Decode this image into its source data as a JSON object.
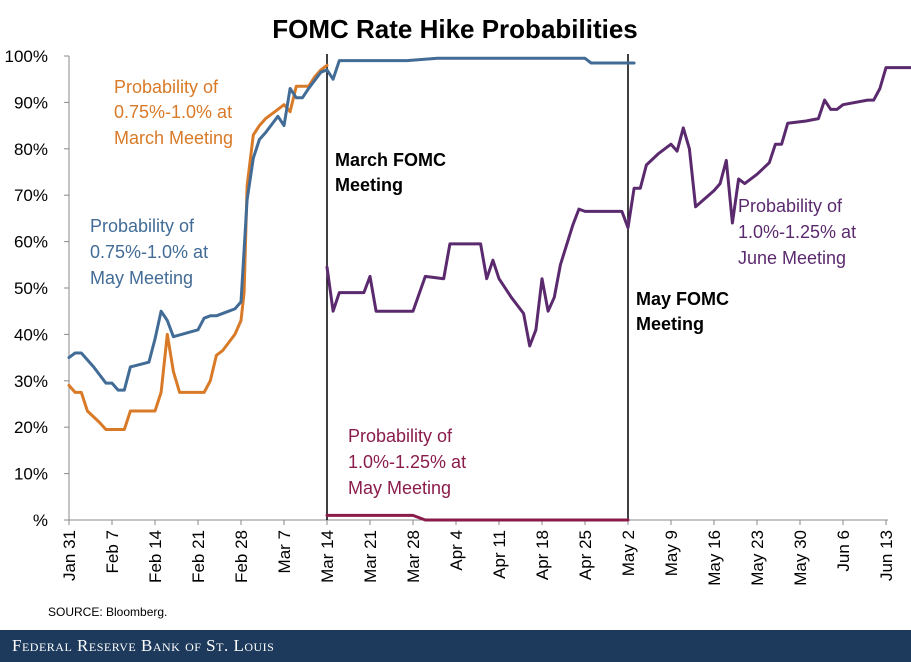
{
  "chart_data": {
    "type": "line",
    "title": "FOMC Rate Hike Probabilities",
    "xlabel": "",
    "ylabel": "",
    "ylim": [
      0,
      100
    ],
    "y_ticks": [
      "%",
      "10%",
      "20%",
      "30%",
      "40%",
      "50%",
      "60%",
      "70%",
      "80%",
      "90%",
      "100%"
    ],
    "x_ticks": [
      "Jan 31",
      "Feb 7",
      "Feb 14",
      "Feb 21",
      "Feb 28",
      "Mar 7",
      "Mar 14",
      "Mar 21",
      "Mar 28",
      "Apr 4",
      "Apr 11",
      "Apr 18",
      "Apr 25",
      "May 2",
      "May 9",
      "May 16",
      "May 23",
      "May 30",
      "Jun 6",
      "Jun 13"
    ],
    "x_unit": "days since Jan 31",
    "vertical_markers": [
      {
        "day": 42,
        "label": "March FOMC Meeting"
      },
      {
        "day": 91,
        "label": "May FOMC Meeting"
      }
    ],
    "series": [
      {
        "name": "Probability of 0.75%-1.0% at March Meeting",
        "color": "#d97a28",
        "points": [
          [
            0,
            29
          ],
          [
            1,
            27.5
          ],
          [
            2,
            27.5
          ],
          [
            3,
            23.5
          ],
          [
            5,
            21
          ],
          [
            6,
            19.5
          ],
          [
            7,
            19.5
          ],
          [
            8,
            19.5
          ],
          [
            9,
            19.5
          ],
          [
            10,
            23.5
          ],
          [
            11,
            23.5
          ],
          [
            14,
            23.5
          ],
          [
            15,
            27.5
          ],
          [
            16,
            40
          ],
          [
            17,
            32
          ],
          [
            18,
            27.5
          ],
          [
            21,
            27.5
          ],
          [
            22,
            27.5
          ],
          [
            23,
            30
          ],
          [
            24,
            35.5
          ],
          [
            25,
            36.5
          ],
          [
            27,
            40
          ],
          [
            28,
            43
          ],
          [
            28.5,
            49
          ],
          [
            29,
            72
          ],
          [
            30,
            83
          ],
          [
            31,
            85
          ],
          [
            32,
            86.5
          ],
          [
            34,
            88.5
          ],
          [
            35,
            89.5
          ],
          [
            36,
            88
          ],
          [
            37,
            93.5
          ],
          [
            38,
            93.5
          ],
          [
            39,
            93.5
          ],
          [
            40,
            95.5
          ],
          [
            41,
            97
          ],
          [
            42,
            98
          ]
        ]
      },
      {
        "name": "Probability of 0.75%-1.0% at May Meeting",
        "color": "#426c96",
        "points": [
          [
            0,
            35
          ],
          [
            1,
            36
          ],
          [
            2,
            36
          ],
          [
            4,
            33
          ],
          [
            6,
            29.5
          ],
          [
            7,
            29.5
          ],
          [
            8,
            28
          ],
          [
            9,
            28
          ],
          [
            10,
            33
          ],
          [
            13,
            34
          ],
          [
            14,
            39
          ],
          [
            15,
            45
          ],
          [
            16,
            43
          ],
          [
            17,
            39.5
          ],
          [
            21,
            41
          ],
          [
            22,
            43.5
          ],
          [
            23,
            44
          ],
          [
            24,
            44
          ],
          [
            26,
            45
          ],
          [
            27,
            45.5
          ],
          [
            28,
            47
          ],
          [
            29,
            69
          ],
          [
            30,
            78
          ],
          [
            31,
            82
          ],
          [
            32,
            83.5
          ],
          [
            34,
            87
          ],
          [
            35,
            85
          ],
          [
            36,
            93
          ],
          [
            37,
            91
          ],
          [
            38,
            91
          ],
          [
            39,
            93
          ],
          [
            41,
            96.5
          ],
          [
            42,
            97
          ],
          [
            43,
            95
          ],
          [
            44,
            99
          ],
          [
            50,
            99
          ],
          [
            55,
            99
          ],
          [
            60,
            99.5
          ],
          [
            70,
            99.5
          ],
          [
            80,
            99.5
          ],
          [
            84,
            99.5
          ],
          [
            85,
            98.5
          ],
          [
            88,
            98.5
          ],
          [
            92,
            98.5
          ]
        ]
      },
      {
        "name": "Probability of 1.0%-1.25% at May Meeting",
        "color": "#8a1c4c",
        "points": [
          [
            42,
            1
          ],
          [
            55,
            1
          ],
          [
            56,
            1
          ],
          [
            58,
            0
          ],
          [
            70,
            0
          ],
          [
            91,
            0
          ]
        ]
      },
      {
        "name": "Probability of 1.0%-1.25% at June Meeting",
        "color": "#5b2a6e",
        "points": [
          [
            42,
            54.5
          ],
          [
            43,
            45
          ],
          [
            44,
            49
          ],
          [
            45,
            49
          ],
          [
            48,
            49
          ],
          [
            49,
            52.5
          ],
          [
            50,
            45
          ],
          [
            56,
            45
          ],
          [
            58,
            52.5
          ],
          [
            61,
            52
          ],
          [
            62,
            59.5
          ],
          [
            64,
            59.5
          ],
          [
            67,
            59.5
          ],
          [
            68,
            52
          ],
          [
            69,
            56
          ],
          [
            70,
            52
          ],
          [
            72,
            48
          ],
          [
            74,
            44.5
          ],
          [
            75,
            37.5
          ],
          [
            76,
            41
          ],
          [
            77,
            52
          ],
          [
            78,
            45
          ],
          [
            79,
            48
          ],
          [
            80,
            55
          ],
          [
            82,
            63.5
          ],
          [
            83,
            67
          ],
          [
            84,
            66.5
          ],
          [
            90,
            66.5
          ],
          [
            91,
            63
          ],
          [
            92,
            71.5
          ],
          [
            93,
            71.5
          ],
          [
            94,
            76.5
          ],
          [
            96,
            79
          ],
          [
            98,
            81
          ],
          [
            99,
            79.5
          ],
          [
            100,
            84.5
          ],
          [
            101,
            80
          ],
          [
            102,
            67.5
          ],
          [
            105,
            71
          ],
          [
            106,
            72.5
          ],
          [
            107,
            77.5
          ],
          [
            108,
            64
          ],
          [
            109,
            73.5
          ],
          [
            110,
            72.5
          ],
          [
            112,
            74.5
          ],
          [
            114,
            77
          ],
          [
            115,
            81
          ],
          [
            116,
            81
          ],
          [
            117,
            85.5
          ],
          [
            120,
            86
          ],
          [
            122,
            86.5
          ],
          [
            123,
            90.5
          ],
          [
            124,
            88.5
          ],
          [
            125,
            88.5
          ],
          [
            126,
            89.5
          ],
          [
            130,
            90.5
          ],
          [
            131,
            90.5
          ],
          [
            132,
            93
          ],
          [
            133,
            97.5
          ],
          [
            137,
            97.5
          ]
        ]
      }
    ],
    "annotations": {
      "march_prob": [
        "Probability of",
        "0.75%-1.0% at",
        "March Meeting"
      ],
      "may_prob": [
        "Probability of",
        "0.75%-1.0% at",
        "May Meeting"
      ],
      "may_prob_purple": [
        "Probability of",
        "1.0%-1.25% at",
        "May Meeting"
      ],
      "june_prob": [
        "Probability of",
        "1.0%-1.25% at",
        "June Meeting"
      ],
      "march_fomc": [
        "March FOMC",
        "Meeting"
      ],
      "may_fomc": [
        "May FOMC",
        "Meeting"
      ]
    },
    "source": "SOURCE: Bloomberg."
  },
  "footer": {
    "text": "Federal Reserve Bank of St. Louis",
    "bg_color": "#1d3a5c"
  }
}
